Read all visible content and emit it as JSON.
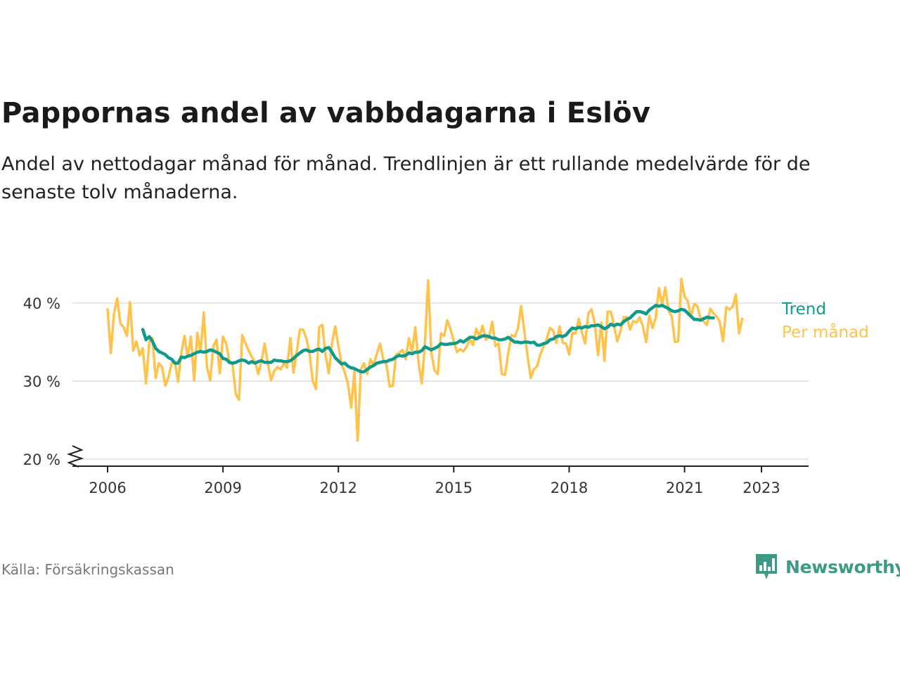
{
  "title": "Pappornas andel av vabbdagarna i Eslöv",
  "subtitle": "Andel av nettodagar månad för månad. Trendlinjen är ett rullande medelvärde för de senaste tolv månaderna.",
  "source": "Källa: Försäkringskassan",
  "brand": {
    "name": "Newsworthy",
    "icon": "bar-chart-speech-bubble-icon"
  },
  "colors": {
    "trend": "#0f9a8c",
    "monthly": "#ffc34d",
    "axis": "#222222",
    "grid": "#dddddd",
    "brand": "#3d9a86"
  },
  "chart_data": {
    "type": "line",
    "title": "Pappornas andel av vabbdagarna i Eslöv",
    "ylabel": "",
    "ylim": [
      20,
      40
    ],
    "y_ticks": [
      20,
      30,
      40
    ],
    "y_tick_labels": [
      "20 %",
      "30 %",
      "40 %"
    ],
    "y_axis_break": true,
    "x_ticks": [
      2006,
      2009,
      2012,
      2015,
      2018,
      2021,
      2023
    ],
    "x_tick_labels": [
      "2006",
      "2009",
      "2012",
      "2015",
      "2018",
      "2021",
      "2023"
    ],
    "grid": true,
    "legend": "right, inline labels at line ends",
    "series": [
      {
        "name": "Per månad",
        "color": "#ffc34d",
        "x_start": "2006-01",
        "x_end": "2023-05",
        "values": [
          39.2,
          33.6,
          38.6,
          40.6,
          37.4,
          36.9,
          35.8,
          40.1,
          33.9,
          35.1,
          33.3,
          34.2,
          29.7,
          35.0,
          35.5,
          30.4,
          32.3,
          31.8,
          29.4,
          30.5,
          32.3,
          32.5,
          29.9,
          33.6,
          35.8,
          33.1,
          35.7,
          30.1,
          36.2,
          33.7,
          38.8,
          31.8,
          30.1,
          34.5,
          35.3,
          31.0,
          35.7,
          34.8,
          32.6,
          32.1,
          28.3,
          27.6,
          35.9,
          34.9,
          33.9,
          33.1,
          32.5,
          30.9,
          32.5,
          34.8,
          32.3,
          30.1,
          31.3,
          31.8,
          31.5,
          32.3,
          31.7,
          35.5,
          31.1,
          33.7,
          36.6,
          36.6,
          35.5,
          33.6,
          30.0,
          29.0,
          36.9,
          37.2,
          33.3,
          31.0,
          34.8,
          37.0,
          34.5,
          32.2,
          31.1,
          29.6,
          26.6,
          31.3,
          22.4,
          31.5,
          32.3,
          30.9,
          32.8,
          32.1,
          33.5,
          34.8,
          32.8,
          32.1,
          29.3,
          29.4,
          33.4,
          33.6,
          34.0,
          32.8,
          35.5,
          33.7,
          36.9,
          32.4,
          29.7,
          34.8,
          42.9,
          33.6,
          31.4,
          30.9,
          36.1,
          35.8,
          37.8,
          36.6,
          35.1,
          33.7,
          34.1,
          33.8,
          34.4,
          35.4,
          34.6,
          36.7,
          35.7,
          37.1,
          35.3,
          35.6,
          37.6,
          34.5,
          34.8,
          30.9,
          30.8,
          33.6,
          35.9,
          35.7,
          36.7,
          39.6,
          36.5,
          33.3,
          30.4,
          31.5,
          31.9,
          33.4,
          34.4,
          35.4,
          36.8,
          36.5,
          34.9,
          37.0,
          34.9,
          34.8,
          33.4,
          36.2,
          36.1,
          38.0,
          36.2,
          34.8,
          38.7,
          39.2,
          37.4,
          33.3,
          37.5,
          32.6,
          38.9,
          38.9,
          37.1,
          35.1,
          36.4,
          38.2,
          38.2,
          36.6,
          37.7,
          37.5,
          38.2,
          37.0,
          35.0,
          38.4,
          36.8,
          38.1,
          41.9,
          39.8,
          42.0,
          39.0,
          38.3,
          35.0,
          35.1,
          43.1,
          40.8,
          40.3,
          38.2,
          39.9,
          39.6,
          38.0,
          37.6,
          37.2,
          39.3,
          38.7,
          38.3,
          37.6,
          35.1,
          39.5,
          39.2,
          39.5,
          41.1,
          36.1,
          38.0
        ]
      },
      {
        "name": "Trend",
        "color": "#0f9a8c",
        "x_start": "2006-12",
        "x_end": "2023-05",
        "values": [
          36.6,
          35.3,
          35.7,
          35.1,
          34.2,
          33.8,
          33.6,
          33.4,
          33.0,
          32.8,
          32.3,
          32.3,
          33.1,
          33.0,
          33.2,
          33.3,
          33.5,
          33.7,
          33.8,
          33.7,
          33.8,
          34.0,
          33.9,
          33.7,
          33.5,
          32.9,
          32.8,
          32.4,
          32.3,
          32.4,
          32.6,
          32.7,
          32.6,
          32.3,
          32.5,
          32.3,
          32.5,
          32.6,
          32.4,
          32.4,
          32.4,
          32.7,
          32.6,
          32.6,
          32.5,
          32.5,
          32.6,
          32.9,
          33.3,
          33.6,
          33.9,
          34.0,
          33.8,
          33.8,
          34.0,
          34.1,
          33.8,
          34.2,
          34.3,
          33.7,
          33.0,
          32.6,
          32.2,
          32.3,
          31.9,
          31.7,
          31.6,
          31.4,
          31.2,
          31.2,
          31.5,
          31.8,
          32.0,
          32.3,
          32.4,
          32.5,
          32.5,
          32.7,
          32.8,
          33.1,
          33.3,
          33.2,
          33.3,
          33.6,
          33.5,
          33.7,
          33.7,
          33.9,
          34.4,
          34.2,
          34.0,
          34.2,
          34.4,
          34.8,
          34.7,
          34.7,
          34.8,
          34.8,
          34.9,
          35.2,
          35.0,
          35.3,
          35.6,
          35.6,
          35.4,
          35.6,
          35.8,
          35.8,
          35.7,
          35.5,
          35.5,
          35.3,
          35.3,
          35.4,
          35.6,
          35.3,
          35.0,
          35.0,
          34.9,
          35.0,
          35.0,
          34.9,
          35.0,
          34.6,
          34.6,
          34.8,
          34.9,
          35.3,
          35.4,
          35.7,
          35.8,
          35.7,
          35.9,
          36.4,
          36.8,
          36.7,
          36.9,
          36.8,
          37.0,
          36.9,
          37.1,
          37.1,
          37.2,
          37.0,
          36.7,
          36.9,
          37.3,
          37.1,
          37.3,
          37.2,
          37.6,
          37.9,
          38.1,
          38.5,
          38.9,
          38.9,
          38.8,
          38.6,
          39.1,
          39.4,
          39.7,
          39.6,
          39.7,
          39.5,
          39.3,
          39.0,
          38.9,
          39.0,
          39.2,
          39.1,
          38.7,
          38.3,
          37.9,
          37.9,
          37.8,
          38.0,
          38.2,
          38.1,
          38.1
        ]
      }
    ]
  }
}
